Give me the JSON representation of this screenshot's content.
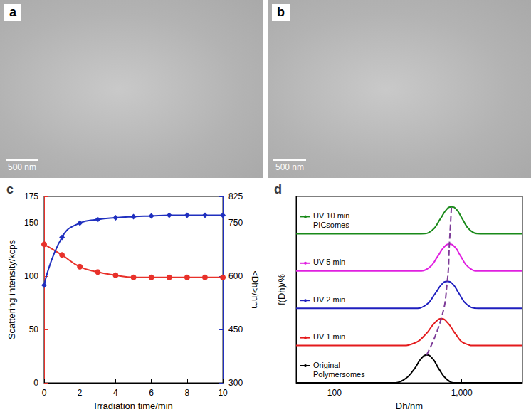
{
  "images": [
    {
      "panel": "a",
      "scale_bar": "500 nm"
    },
    {
      "panel": "b",
      "scale_bar": "500 nm"
    }
  ],
  "chart_data": [
    {
      "type": "line",
      "panel": "c",
      "xlabel": "Irradiation time/min",
      "ylabel": "Scattering intensity/kcps",
      "y2label": "<Dh>/nm",
      "x": [
        0,
        1,
        2,
        3,
        4,
        5,
        6,
        7,
        8,
        9,
        10
      ],
      "xlim": [
        0,
        10
      ],
      "xticks": [
        0,
        2,
        4,
        6,
        8,
        10
      ],
      "ylim": [
        0,
        175
      ],
      "yticks": [
        0,
        50,
        100,
        150
      ],
      "y2lim": [
        300,
        825
      ],
      "y2ticks": [
        300,
        450,
        600,
        750
      ],
      "series": [
        {
          "color": "#e8312a",
          "marker": "circle",
          "values": [
            130,
            120,
            109,
            104,
            101,
            99,
            99,
            99,
            99,
            99,
            99
          ]
        },
        {
          "color": "#1f2fbf",
          "marker": "diamond",
          "axis": "y2",
          "values": [
            575,
            710,
            750,
            760,
            765,
            768,
            770,
            772,
            772,
            772,
            772
          ]
        }
      ]
    },
    {
      "type": "line",
      "panel": "d",
      "xlabel": "Dh/nm",
      "ylabel": "f(Dh)/%",
      "log": "x",
      "tick_labels": "x",
      "xlim": [
        50,
        3000
      ],
      "xticks": [
        100,
        1000
      ],
      "ylim": [
        0,
        5
      ],
      "series": [
        {
          "name": "Original\nPolymersomes",
          "color": "#000000",
          "x": [
            50,
            280,
            350,
            420,
            480,
            530,
            590,
            660,
            760,
            900,
            3000
          ],
          "values": [
            0,
            0,
            0.08,
            0.35,
            0.65,
            0.75,
            0.65,
            0.38,
            0.1,
            0,
            0
          ]
        },
        {
          "name": "UV 1 min",
          "color": "#e41a1c",
          "x": [
            50,
            330,
            420,
            520,
            610,
            690,
            780,
            890,
            1050,
            1300,
            3000
          ],
          "values": [
            1,
            1,
            1.06,
            1.3,
            1.6,
            1.72,
            1.6,
            1.32,
            1.06,
            1,
            1
          ]
        },
        {
          "name": "UV 2 min",
          "color": "#1f1fbf",
          "x": [
            50,
            420,
            520,
            620,
            700,
            770,
            850,
            950,
            1100,
            1350,
            3000
          ],
          "values": [
            2,
            2,
            2.08,
            2.4,
            2.65,
            2.72,
            2.65,
            2.4,
            2.1,
            2,
            2
          ]
        },
        {
          "name": "UV 5 min",
          "color": "#e020e0",
          "x": [
            50,
            450,
            550,
            650,
            730,
            800,
            880,
            980,
            1130,
            1380,
            3000
          ],
          "values": [
            3,
            3,
            3.08,
            3.4,
            3.65,
            3.72,
            3.65,
            3.4,
            3.1,
            3,
            3
          ]
        },
        {
          "name": "UV 10 min\nPICsomes",
          "color": "#1a8a1a",
          "x": [
            50,
            480,
            580,
            680,
            760,
            830,
            910,
            1010,
            1160,
            1400,
            3000
          ],
          "values": [
            4,
            4,
            4.08,
            4.4,
            4.65,
            4.72,
            4.65,
            4.4,
            4.1,
            4,
            4
          ]
        },
        {
          "color": "#7d3c98",
          "line_style": "dashed",
          "x": [
            530,
            690,
            770,
            800,
            830
          ],
          "values": [
            0.75,
            1.72,
            2.72,
            3.72,
            4.72
          ]
        }
      ]
    }
  ]
}
